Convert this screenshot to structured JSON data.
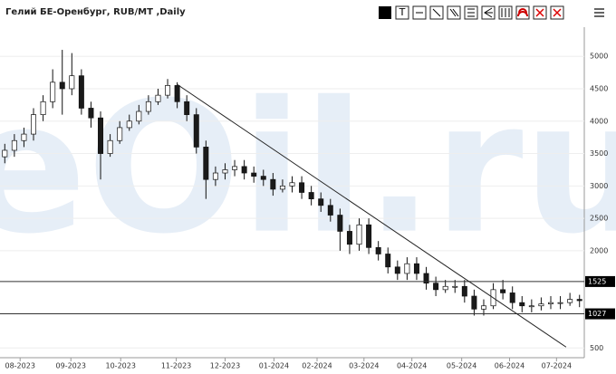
{
  "chart_data": {
    "type": "candlestick",
    "title": "Гелий БЕ-Оренбург, RUB/MT ,Daily",
    "watermark": "eOil.ru",
    "up_color": "#ffffff",
    "down_color": "#1a1a1a",
    "wick_color": "#111111",
    "ylim": [
      350,
      5450
    ],
    "yticks": [
      500,
      2000,
      2500,
      3000,
      3500,
      4000,
      4500,
      5000
    ],
    "xlim": [
      -0.5,
      60.5
    ],
    "xticks": [
      {
        "value": 1.6,
        "label": "08-2023"
      },
      {
        "value": 6.9,
        "label": "09-2023"
      },
      {
        "value": 12.1,
        "label": "10-2023"
      },
      {
        "value": 17.9,
        "label": "11-2023"
      },
      {
        "value": 23,
        "label": "12-2023"
      },
      {
        "value": 28.1,
        "label": "01-2024"
      },
      {
        "value": 32.6,
        "label": "02-2024"
      },
      {
        "value": 37.5,
        "label": "03-2024"
      },
      {
        "value": 42.5,
        "label": "04-2024"
      },
      {
        "value": 47.7,
        "label": "05-2024"
      },
      {
        "value": 52.7,
        "label": "06-2024"
      },
      {
        "value": 57.6,
        "label": "07-2024"
      }
    ],
    "open": [
      3450,
      3550,
      3700,
      3800,
      4100,
      4300,
      4600,
      4500,
      4700,
      4200,
      4050,
      3500,
      3700,
      3900,
      4000,
      4150,
      4300,
      4400,
      4550,
      4300,
      4100,
      3600,
      3100,
      3200,
      3250,
      3300,
      3200,
      3150,
      3100,
      2950,
      3000,
      3050,
      2900,
      2800,
      2700,
      2550,
      2300,
      2100,
      2400,
      2050,
      1950,
      1750,
      1650,
      1800,
      1650,
      1500,
      1400,
      1450,
      1450,
      1300,
      1100,
      1150,
      1400,
      1350,
      1200,
      1150,
      1150,
      1180,
      1200,
      1200,
      1250
    ],
    "high": [
      3650,
      3800,
      3900,
      4200,
      4400,
      4800,
      5100,
      5050,
      4800,
      4300,
      4150,
      3800,
      4000,
      4100,
      4250,
      4400,
      4500,
      4650,
      4600,
      4400,
      4200,
      3700,
      3300,
      3350,
      3400,
      3400,
      3300,
      3250,
      3200,
      3100,
      3150,
      3150,
      3000,
      2900,
      2800,
      2650,
      2400,
      2500,
      2500,
      2150,
      2050,
      1850,
      1900,
      1900,
      1750,
      1600,
      1550,
      1550,
      1550,
      1400,
      1250,
      1500,
      1550,
      1450,
      1300,
      1250,
      1280,
      1300,
      1300,
      1350,
      1320
    ],
    "low": [
      3350,
      3450,
      3600,
      3700,
      4000,
      4200,
      4100,
      4400,
      4100,
      3900,
      3100,
      3450,
      3650,
      3850,
      3950,
      4100,
      4250,
      4350,
      4200,
      4000,
      3500,
      2800,
      3000,
      3100,
      3150,
      3100,
      3050,
      3000,
      2850,
      2900,
      2900,
      2800,
      2700,
      2600,
      2450,
      2000,
      1950,
      2000,
      1950,
      1850,
      1650,
      1550,
      1550,
      1550,
      1400,
      1300,
      1350,
      1350,
      1200,
      1000,
      1000,
      1100,
      1250,
      1100,
      1050,
      1050,
      1080,
      1100,
      1100,
      1150,
      1130
    ],
    "close": [
      3550,
      3700,
      3800,
      4100,
      4300,
      4600,
      4500,
      4700,
      4200,
      4050,
      3500,
      3700,
      3900,
      4000,
      4150,
      4300,
      4400,
      4550,
      4300,
      4100,
      3600,
      3100,
      3200,
      3250,
      3300,
      3200,
      3150,
      3100,
      2950,
      3000,
      3050,
      2900,
      2800,
      2700,
      2550,
      2300,
      2100,
      2400,
      2050,
      1950,
      1750,
      1650,
      1800,
      1650,
      1500,
      1400,
      1450,
      1450,
      1300,
      1100,
      1150,
      1400,
      1350,
      1200,
      1150,
      1150,
      1180,
      1200,
      1200,
      1250,
      1230
    ],
    "levels": [
      1525,
      1027
    ],
    "trend_line": {
      "x": [
        18.0,
        58.6
      ],
      "y": [
        4566,
        514
      ]
    }
  }
}
